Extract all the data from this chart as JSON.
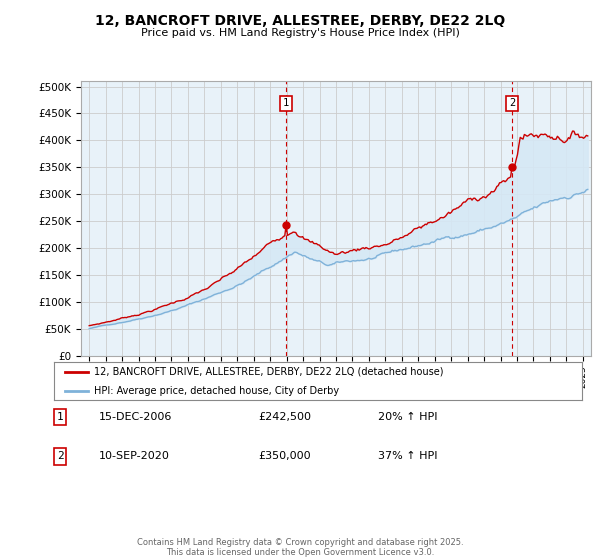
{
  "title_line1": "12, BANCROFT DRIVE, ALLESTREE, DERBY, DE22 2LQ",
  "title_line2": "Price paid vs. HM Land Registry's House Price Index (HPI)",
  "ylabel_ticks": [
    "£0",
    "£50K",
    "£100K",
    "£150K",
    "£200K",
    "£250K",
    "£300K",
    "£350K",
    "£400K",
    "£450K",
    "£500K"
  ],
  "ytick_values": [
    0,
    50000,
    100000,
    150000,
    200000,
    250000,
    300000,
    350000,
    400000,
    450000,
    500000
  ],
  "ylim": [
    0,
    510000
  ],
  "xlim_start": 1994.5,
  "xlim_end": 2025.5,
  "sale1_x": 2006.96,
  "sale1_y": 242500,
  "sale2_x": 2020.71,
  "sale2_y": 350000,
  "vline1_x": 2006.96,
  "vline2_x": 2020.71,
  "red_color": "#cc0000",
  "blue_color": "#7fb2d9",
  "fill_color": "#d6e8f5",
  "vline_color": "#cc0000",
  "legend_label1": "12, BANCROFT DRIVE, ALLESTREE, DERBY, DE22 2LQ (detached house)",
  "legend_label2": "HPI: Average price, detached house, City of Derby",
  "ann1_label": "1",
  "ann2_label": "2",
  "ann1_date": "15-DEC-2006",
  "ann1_price": "£242,500",
  "ann1_hpi": "20% ↑ HPI",
  "ann2_date": "10-SEP-2020",
  "ann2_price": "£350,000",
  "ann2_hpi": "37% ↑ HPI",
  "footer": "Contains HM Land Registry data © Crown copyright and database right 2025.\nThis data is licensed under the Open Government Licence v3.0.",
  "background_color": "#ffffff",
  "grid_color": "#cccccc",
  "chart_bg_color": "#e8f2f9"
}
